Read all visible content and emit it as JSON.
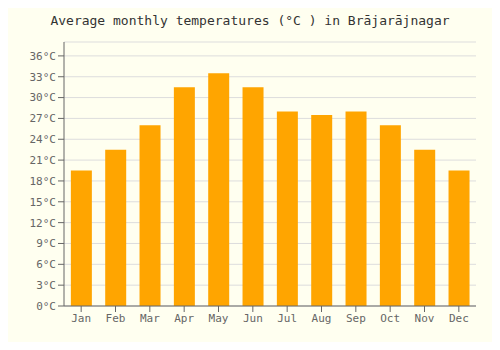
{
  "chart_data": {
    "type": "bar",
    "title": "Average monthly temperatures (°C ) in Brājarājnagar",
    "categories": [
      "Jan",
      "Feb",
      "Mar",
      "Apr",
      "May",
      "Jun",
      "Jul",
      "Aug",
      "Sep",
      "Oct",
      "Nov",
      "Dec"
    ],
    "values": [
      19.5,
      22.5,
      26.0,
      31.5,
      33.5,
      31.5,
      28.0,
      27.5,
      28.0,
      26.0,
      22.5,
      19.5
    ],
    "color": "#FFA500",
    "ylim": [
      0,
      38
    ],
    "yticks": [
      {
        "value": 0,
        "label": "0°C"
      },
      {
        "value": 3,
        "label": "3°C"
      },
      {
        "value": 6,
        "label": "6°C"
      },
      {
        "value": 9,
        "label": "9°C"
      },
      {
        "value": 12,
        "label": "12°C"
      },
      {
        "value": 15,
        "label": "15°C"
      },
      {
        "value": 18,
        "label": "18°C"
      },
      {
        "value": 21,
        "label": "21°C"
      },
      {
        "value": 24,
        "label": "24°C"
      },
      {
        "value": 27,
        "label": "27°C"
      },
      {
        "value": 30,
        "label": "30°C"
      },
      {
        "value": 33,
        "label": "33°C"
      },
      {
        "value": 36,
        "label": "36°C"
      }
    ],
    "grid": true
  }
}
